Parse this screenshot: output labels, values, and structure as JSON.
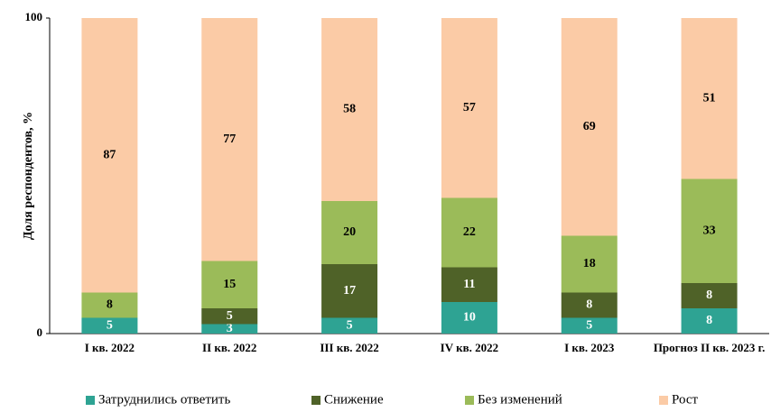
{
  "chart_data": {
    "type": "stacked-bar",
    "y_label": "Доля респондентов, %",
    "categories": [
      "I  кв. 2022",
      "II кв. 2022",
      "III кв. 2022",
      "IV кв. 2022",
      "I кв. 2023",
      "Прогноз II кв. 2023 г."
    ],
    "series": [
      {
        "name": "Затруднились ответить",
        "color": "#2ea393",
        "values": [
          5,
          3,
          5,
          10,
          5,
          8
        ]
      },
      {
        "name": "Снижение",
        "color": "#4f6228",
        "values": [
          null,
          5,
          17,
          11,
          8,
          8
        ]
      },
      {
        "name": "Без изменений",
        "color": "#9bbb59",
        "values": [
          8,
          15,
          20,
          22,
          18,
          33
        ]
      },
      {
        "name": "Рост",
        "color": "#fbcba6",
        "values": [
          87,
          77,
          58,
          57,
          69,
          51
        ]
      }
    ],
    "ylim": [
      0,
      100
    ],
    "yticks": [
      0,
      100
    ],
    "grid": false,
    "legend": "bottom"
  }
}
